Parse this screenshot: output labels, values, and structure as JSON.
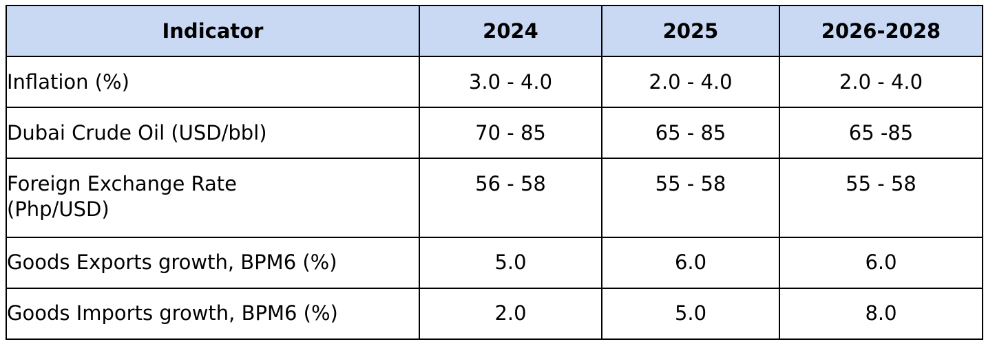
{
  "table": {
    "headers": [
      "Indicator",
      "2024",
      "2025",
      "2026-2028"
    ],
    "rows": [
      {
        "indicator": "Inflation (%)",
        "y2024": "3.0 - 4.0",
        "y2025": "2.0 - 4.0",
        "y2026_2028": "2.0 - 4.0"
      },
      {
        "indicator": "Dubai Crude Oil (USD/bbl)",
        "y2024": "70 - 85",
        "y2025": "65 - 85",
        "y2026_2028": "65 -85"
      },
      {
        "indicator_line1": "Foreign Exchange Rate",
        "indicator_line2": "(Php/USD)",
        "y2024": "56 - 58",
        "y2025": "55 - 58",
        "y2026_2028": "55 - 58"
      },
      {
        "indicator": "Goods Exports growth, BPM6 (%)",
        "y2024": "5.0",
        "y2025": "6.0",
        "y2026_2028": "6.0"
      },
      {
        "indicator": "Goods Imports growth, BPM6 (%)",
        "y2024": "2.0",
        "y2025": "5.0",
        "y2026_2028": "8.0"
      }
    ]
  },
  "colors": {
    "header_background": "#c9d9f4",
    "border": "#000000",
    "text": "#000000"
  }
}
